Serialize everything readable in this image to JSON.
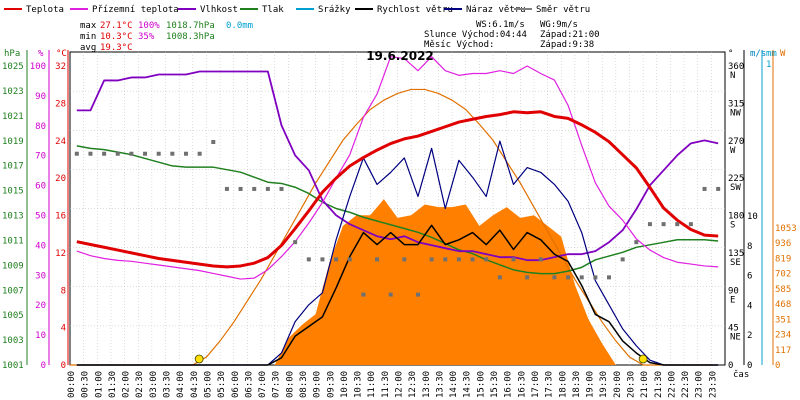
{
  "chart_data": {
    "type": "line",
    "title": "19.6.2022",
    "x_ticks": [
      "00:00",
      "00:30",
      "01:00",
      "01:30",
      "02:00",
      "02:30",
      "03:00",
      "03:30",
      "04:00",
      "04:30",
      "05:00",
      "05:30",
      "06:00",
      "06:30",
      "07:00",
      "07:30",
      "08:00",
      "08:30",
      "09:00",
      "09:30",
      "10:00",
      "10:30",
      "11:00",
      "11:30",
      "12:00",
      "12:30",
      "13:00",
      "13:30",
      "14:00",
      "14:30",
      "15:00",
      "15:30",
      "16:00",
      "16:30",
      "17:00",
      "17:30",
      "18:00",
      "18:30",
      "19:00",
      "19:30",
      "20:00",
      "20:30",
      "21:00",
      "21:30",
      "22:00",
      "22:30",
      "23:00",
      "23:30"
    ],
    "x_axis_label": "čas",
    "legend": [
      {
        "key": "teplota",
        "label": "Teplota",
        "color": "#e00000"
      },
      {
        "key": "rosny",
        "label": "Přízemní teplota",
        "color": "#e020e0"
      },
      {
        "key": "vlhkost",
        "label": "Vlhkost",
        "color": "#8000c0"
      },
      {
        "key": "tlak",
        "label": "Tlak",
        "color": "#208020"
      },
      {
        "key": "srazky",
        "label": "Srážky",
        "color": "#00a0d0"
      },
      {
        "key": "rychlost",
        "label": "Rychlost větru",
        "color": "#000000"
      },
      {
        "key": "naraz",
        "label": "Náraz větru",
        "color": "#000080"
      },
      {
        "key": "smer",
        "label": "Směr větru",
        "color": "#808080"
      }
    ],
    "stats": {
      "max_label": "max",
      "max_temp": "27.1°C",
      "max_hum": "100%",
      "max_press": "1018.7hPa",
      "precip": "0.0mm",
      "min_label": "min",
      "min_temp": "10.3°C",
      "min_hum": "35%",
      "min_press": "1008.3hPa",
      "avg_label": "avg",
      "avg_temp": "19.3°C",
      "ws": "WS:6.1m/s",
      "wg": "WG:9m/s",
      "sun": "Slunce Východ:04:44",
      "sun_set": "Západ:21:00",
      "moon": "Měsíc  Východ:",
      "moon_set": "Západ:9:38"
    },
    "axes": {
      "hpa": {
        "label": "hPa",
        "color": "#208020",
        "ticks": [
          "1025",
          "1023",
          "1021",
          "1019",
          "1017",
          "1015",
          "1013",
          "1011",
          "1009",
          "1007",
          "1005",
          "1003",
          "1001"
        ]
      },
      "pct": {
        "label": "%",
        "color": "#d000d0",
        "ticks": [
          "100",
          "90",
          "80",
          "70",
          "60",
          "50",
          "40",
          "30",
          "20",
          "10",
          "0"
        ]
      },
      "degc": {
        "label": "°C",
        "color": "#e00000",
        "ticks": [
          "32",
          "28",
          "24",
          "20",
          "16",
          "12",
          "8",
          "4",
          "0"
        ],
        "extra": [
          "4",
          "0"
        ]
      },
      "dir": {
        "label": "°",
        "ticks": [
          "360",
          "315",
          "270",
          "225",
          "180",
          "135",
          "90",
          "45",
          "0"
        ],
        "letters": [
          "N",
          "NW",
          "W",
          "SW",
          "S",
          "SE",
          "E",
          "NE"
        ]
      },
      "ms": {
        "label": "m/s",
        "color": "#0080c0",
        "ticks": [
          "10",
          "8",
          "6",
          "4",
          "2",
          "0"
        ],
        "left_ticks": [
          "12",
          "10",
          "8",
          "6",
          "4",
          "2",
          "0"
        ]
      },
      "mm": {
        "label": "mm",
        "color": "#00a0d0",
        "ticks": [
          "1"
        ]
      },
      "w": {
        "label": "W",
        "color": "#e07000",
        "ticks": [
          "1053",
          "936",
          "819",
          "702",
          "585",
          "468",
          "351",
          "234",
          "117",
          "0"
        ]
      }
    },
    "series": {
      "teplota": [
        13.2,
        12.9,
        12.6,
        12.3,
        12.0,
        11.7,
        11.4,
        11.2,
        11.0,
        10.8,
        10.6,
        10.5,
        10.6,
        10.9,
        11.5,
        12.8,
        14.6,
        16.5,
        18.5,
        20.0,
        21.3,
        22.2,
        23.0,
        23.7,
        24.2,
        24.5,
        25.0,
        25.5,
        26.0,
        26.3,
        26.6,
        26.8,
        27.1,
        27.0,
        27.1,
        26.6,
        26.4,
        25.7,
        24.9,
        23.9,
        22.5,
        21.1,
        19.0,
        16.8,
        15.5,
        14.5,
        13.9,
        13.8
      ],
      "rosny": [
        12.2,
        11.7,
        11.4,
        11.2,
        11.1,
        10.9,
        10.7,
        10.5,
        10.3,
        10.1,
        9.8,
        9.5,
        9.2,
        9.3,
        10.2,
        11.6,
        13.2,
        15.2,
        17.4,
        20.0,
        22.5,
        26.5,
        29.0,
        33.0,
        32.8,
        31.5,
        33.0,
        31.5,
        31.0,
        31.2,
        31.2,
        31.5,
        31.2,
        32.0,
        31.2,
        30.5,
        27.8,
        23.5,
        19.5,
        17.0,
        15.5,
        13.5,
        12.3,
        11.5,
        11.0,
        10.8,
        10.6,
        10.5
      ],
      "vlhkost": [
        85,
        85,
        95,
        95,
        96,
        96,
        97,
        97,
        97,
        98,
        98,
        98,
        98,
        98,
        98,
        80,
        70,
        65,
        55,
        50,
        47,
        45,
        43,
        42,
        43,
        41,
        40,
        39,
        38,
        38,
        37,
        36,
        36,
        35,
        35,
        36,
        37,
        37,
        38,
        41,
        45,
        52,
        60,
        65,
        70,
        74,
        75,
        74
      ],
      "tlak": [
        1018.5,
        1018.3,
        1018.2,
        1018.0,
        1017.8,
        1017.5,
        1017.2,
        1016.9,
        1016.8,
        1016.8,
        1016.8,
        1016.6,
        1016.4,
        1016.0,
        1015.6,
        1015.5,
        1015.2,
        1014.7,
        1014.0,
        1013.5,
        1013.2,
        1012.8,
        1012.5,
        1012.2,
        1011.9,
        1011.6,
        1011.2,
        1010.7,
        1010.2,
        1009.9,
        1009.4,
        1009.0,
        1008.6,
        1008.4,
        1008.3,
        1008.3,
        1008.5,
        1008.8,
        1009.4,
        1009.7,
        1010.0,
        1010.4,
        1010.6,
        1010.8,
        1011.0,
        1011.0,
        1011.0,
        1010.9
      ],
      "rychlost": [
        0,
        0,
        0,
        0,
        0,
        0,
        0,
        0,
        0,
        0,
        0,
        0,
        0,
        0,
        0,
        0.3,
        1.2,
        1.6,
        2.0,
        3.2,
        4.5,
        5.5,
        5.0,
        5.5,
        5.0,
        5.0,
        5.8,
        5.0,
        5.2,
        5.5,
        5.0,
        5.6,
        4.8,
        5.5,
        5.2,
        4.6,
        4.3,
        3.3,
        2.1,
        1.8,
        1.0,
        0.5,
        0.1,
        0,
        0,
        0,
        0,
        0
      ],
      "naraz": [
        0,
        0,
        0,
        0,
        0,
        0,
        0,
        0,
        0,
        0,
        0,
        0,
        0,
        0,
        0,
        0.5,
        1.8,
        2.5,
        3.0,
        5.2,
        7.0,
        8.6,
        7.5,
        8.0,
        8.6,
        7.0,
        9.0,
        6.5,
        8.5,
        7.8,
        7.0,
        9.3,
        7.5,
        8.2,
        8.0,
        7.5,
        6.8,
        5.5,
        3.5,
        2.5,
        1.5,
        0.8,
        0.2,
        0,
        0,
        0,
        0,
        0
      ],
      "smer": [
        270,
        270,
        270,
        270,
        270,
        270,
        270,
        270,
        270,
        270,
        285,
        225,
        225,
        225,
        225,
        225,
        157,
        135,
        135,
        135,
        135,
        90,
        135,
        90,
        135,
        90,
        135,
        135,
        135,
        135,
        135,
        112,
        135,
        112,
        135,
        112,
        112,
        112,
        112,
        112,
        135,
        157,
        180,
        180,
        180,
        180,
        225,
        225
      ],
      "slunce": [
        0,
        0,
        0,
        0,
        0,
        0,
        0,
        0,
        0,
        0,
        0,
        0,
        0,
        0,
        0,
        0,
        100,
        150,
        190,
        380,
        520,
        560,
        560,
        620,
        550,
        560,
        600,
        590,
        590,
        600,
        520,
        560,
        590,
        550,
        560,
        520,
        480,
        300,
        170,
        80,
        0,
        0,
        0,
        0,
        0,
        0,
        0,
        0
      ],
      "slunce_teor": [
        0,
        0,
        0,
        0,
        0,
        0,
        0,
        0,
        0,
        0,
        30,
        90,
        160,
        240,
        320,
        410,
        500,
        590,
        680,
        760,
        840,
        900,
        955,
        990,
        1015,
        1030,
        1030,
        1015,
        990,
        955,
        900,
        840,
        760,
        680,
        590,
        500,
        410,
        320,
        240,
        160,
        90,
        30,
        0,
        0,
        0,
        0,
        0,
        0
      ]
    },
    "markers": {
      "sunrise": "04:44",
      "sunset": "21:00"
    }
  }
}
